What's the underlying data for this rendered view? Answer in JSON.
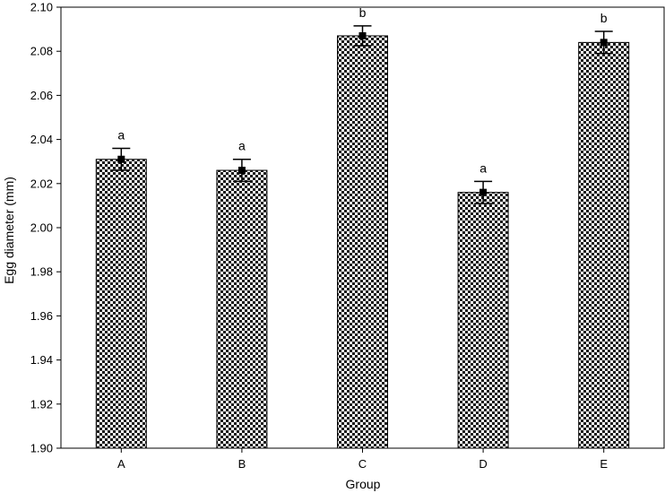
{
  "chart_data": {
    "type": "bar",
    "xlabel": "Group",
    "ylabel": "Egg diameter (mm)",
    "ylim": [
      1.9,
      2.1
    ],
    "yticks": [
      "1.90",
      "1.92",
      "1.94",
      "1.96",
      "1.98",
      "2.00",
      "2.02",
      "2.04",
      "2.06",
      "2.08",
      "2.10"
    ],
    "categories": [
      "A",
      "B",
      "C",
      "D",
      "E"
    ],
    "values": [
      2.031,
      2.026,
      2.087,
      2.016,
      2.084
    ],
    "error_bars": [
      0.005,
      0.005,
      0.0045,
      0.005,
      0.005
    ],
    "significance_letters": [
      "a",
      "a",
      "b",
      "a",
      "b"
    ],
    "bar_fill": "checkerboard",
    "grid": false,
    "colors": {
      "bar_dark": "#1a1a1a",
      "bar_light": "#ffffff",
      "axis": "#000000"
    }
  }
}
